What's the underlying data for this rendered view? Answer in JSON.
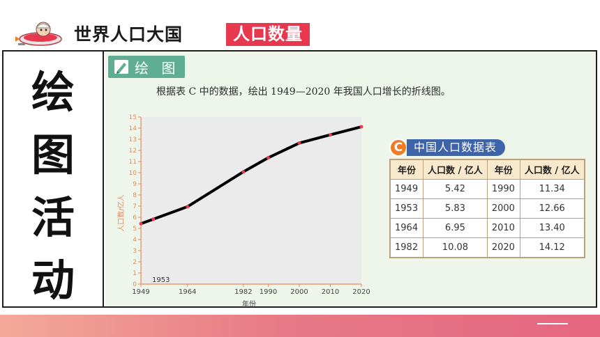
{
  "header": {
    "title": "世界人口大国",
    "tag": "人口数量"
  },
  "left": {
    "chars": [
      "绘",
      "图",
      "活",
      "动"
    ]
  },
  "activity": {
    "label": "绘 图",
    "instruction": "根据表 C 中的数据，绘出 1949—2020 年我国人口增长的折线图。"
  },
  "colors": {
    "tag_bg": "#e8384f",
    "panel_bg": "#eef6ec",
    "activity_bar": "#5fae94",
    "table_title_bg": "#3d63a8",
    "badge": "#f07d24"
  },
  "chart_data": {
    "type": "line",
    "xlabel": "年份",
    "ylabel": "人口数/亿人",
    "xlim": [
      1949,
      2020
    ],
    "ylim": [
      0,
      15
    ],
    "x_ticks": [
      "1949",
      "1964",
      "1982",
      "1990",
      "2000",
      "2010",
      "2020"
    ],
    "x_tick_values": [
      1949,
      1964,
      1982,
      1990,
      2000,
      2010,
      2020
    ],
    "y_ticks": [
      0,
      1,
      2,
      3,
      4,
      5,
      6,
      7,
      8,
      9,
      10,
      11,
      12,
      13,
      14,
      15
    ],
    "annotation": "1953",
    "series": [
      {
        "x": [
          1949,
          1953,
          1964,
          1982,
          1990,
          2000,
          2010,
          2020
        ],
        "y": [
          5.42,
          5.83,
          6.95,
          10.08,
          11.34,
          12.66,
          13.4,
          14.12
        ]
      }
    ],
    "grid": false
  },
  "table": {
    "badge": "C",
    "title": "中国人口数据表",
    "headers": [
      "年份",
      "人口数 / 亿人",
      "年份",
      "人口数 / 亿人"
    ],
    "rows": [
      [
        "1949",
        "5.42",
        "1990",
        "11.34"
      ],
      [
        "1953",
        "5.83",
        "2000",
        "12.66"
      ],
      [
        "1964",
        "6.95",
        "2010",
        "13.40"
      ],
      [
        "1982",
        "10.08",
        "2020",
        "14.12"
      ]
    ]
  }
}
